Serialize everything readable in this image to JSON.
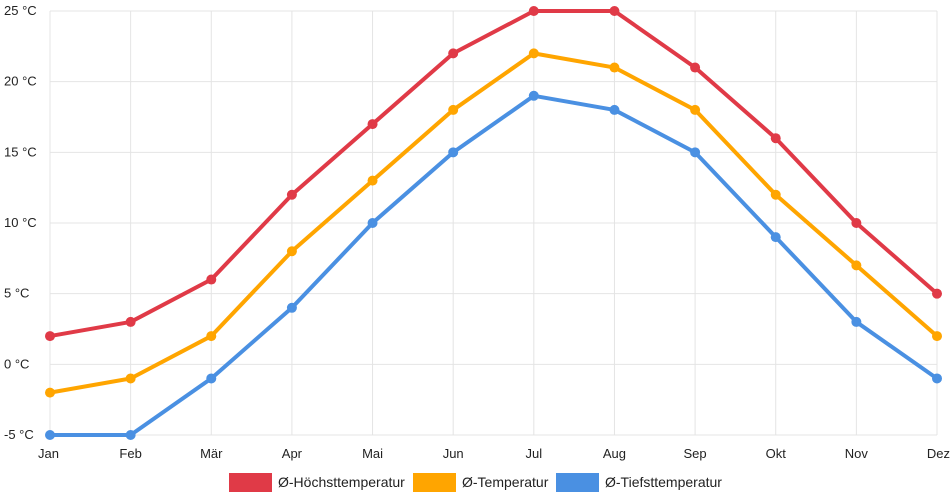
{
  "chart_data": {
    "type": "line",
    "title": "",
    "xlabel": "",
    "ylabel": "",
    "unit_suffix": " °C",
    "categories": [
      "Jan",
      "Feb",
      "Mär",
      "Apr",
      "Mai",
      "Jun",
      "Jul",
      "Aug",
      "Sep",
      "Okt",
      "Nov",
      "Dez"
    ],
    "ylim": [
      -5,
      25
    ],
    "yticks": [
      -5,
      0,
      5,
      10,
      15,
      20,
      25
    ],
    "ytick_labels": [
      "-5 °C",
      "0 °C",
      "5 °C",
      "10 °C",
      "15 °C",
      "20 °C",
      "25 °C"
    ],
    "grid": true,
    "legend_position": "bottom-center",
    "series": [
      {
        "name": "Ø-Höchsttemperatur",
        "color": "#e03a47",
        "values": [
          2,
          3,
          6,
          12,
          17,
          22,
          25,
          25,
          21,
          16,
          10,
          5
        ]
      },
      {
        "name": "Ø-Temperatur",
        "color": "#ffa500",
        "values": [
          -2,
          -1,
          2,
          8,
          13,
          18,
          22,
          21,
          18,
          12,
          7,
          2
        ]
      },
      {
        "name": "Ø-Tiefsttemperatur",
        "color": "#4a90e2",
        "values": [
          -5,
          -5,
          -1,
          4,
          10,
          15,
          19,
          18,
          15,
          9,
          3,
          -1
        ]
      }
    ]
  }
}
